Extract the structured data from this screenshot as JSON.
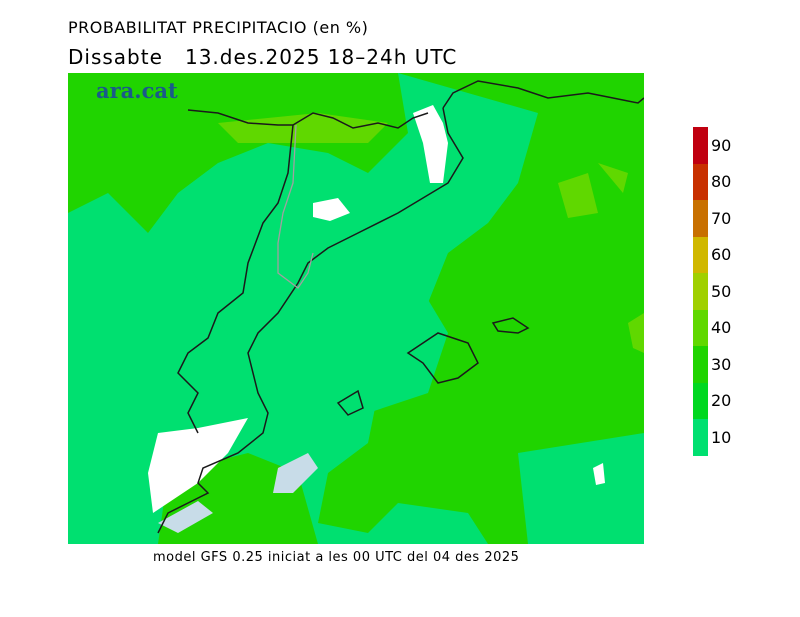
{
  "title": "PROBABILITAT PRECIPITACIO (en %)",
  "subtitle": "Dissabte   13.des.2025 18–24h UTC",
  "logo": "ara.cat",
  "footer": "model GFS 0.25 iniciat a les 00 UTC del 04 des 2025",
  "legend": {
    "bins": [
      {
        "label": "90",
        "color": "#c00010"
      },
      {
        "label": "80",
        "color": "#c83000"
      },
      {
        "label": "70",
        "color": "#c87000"
      },
      {
        "label": "60",
        "color": "#d0b800"
      },
      {
        "label": "50",
        "color": "#a0d000"
      },
      {
        "label": "40",
        "color": "#60d800"
      },
      {
        "label": "30",
        "color": "#20d400"
      },
      {
        "label": "20",
        "color": "#00d820"
      },
      {
        "label": "10",
        "color": "#00e070"
      }
    ]
  },
  "colors": {
    "base": "#00e070",
    "mid": "#20d400",
    "high": "#60d800",
    "sea_none": "#c8dce8"
  }
}
